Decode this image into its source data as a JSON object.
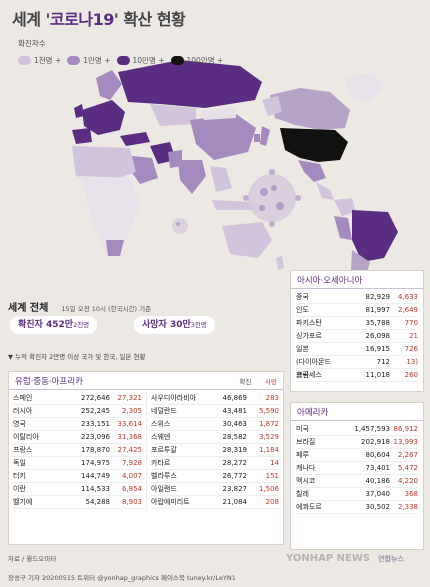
{
  "title": {
    "pre": "세계 '",
    "quote": "코로나19",
    "post": "' 확산 현황"
  },
  "legend": {
    "title": "확진자수",
    "items": [
      {
        "label": "1천명 +",
        "color": "#d1c4dc"
      },
      {
        "label": "1만명 +",
        "color": "#a58ac0"
      },
      {
        "label": "10만명 +",
        "color": "#5a2d82"
      },
      {
        "label": "100만명 +",
        "color": "#111111"
      }
    ]
  },
  "world": {
    "title": "세계 전체",
    "subtitle": "15일 오전 10시 (한국시간) 기준",
    "confirmed_label": "확진자",
    "confirmed_big": "452만",
    "confirmed_small": "2천명",
    "deaths_label": "사망자",
    "deaths_big": "30만",
    "deaths_small": "3천명"
  },
  "note": "▼ 누적 확진자 2만명 이상 국가 및 한국, 일본 현황",
  "europe": {
    "title": "유럽·중동·아프리카",
    "col_confirmed": "확진",
    "col_deaths": "사망",
    "left": [
      {
        "name": "스페인",
        "confirmed": "272,646",
        "deaths": "27,321"
      },
      {
        "name": "러시아",
        "confirmed": "252,245",
        "deaths": "2,305"
      },
      {
        "name": "영국",
        "confirmed": "233,151",
        "deaths": "33,614"
      },
      {
        "name": "이탈리아",
        "confirmed": "223,096",
        "deaths": "31,368"
      },
      {
        "name": "프랑스",
        "confirmed": "178,870",
        "deaths": "27,425"
      },
      {
        "name": "독일",
        "confirmed": "174,975",
        "deaths": "7,928"
      },
      {
        "name": "터키",
        "confirmed": "144,749",
        "deaths": "4,007"
      },
      {
        "name": "이란",
        "confirmed": "114,533",
        "deaths": "6,854"
      },
      {
        "name": "벨기에",
        "confirmed": "54,288",
        "deaths": "8,903"
      }
    ],
    "right": [
      {
        "name": "사우디아라비아",
        "confirmed": "46,869",
        "deaths": "283"
      },
      {
        "name": "네덜란드",
        "confirmed": "43,481",
        "deaths": "5,590"
      },
      {
        "name": "스위스",
        "confirmed": "30,463",
        "deaths": "1,872"
      },
      {
        "name": "스웨덴",
        "confirmed": "28,582",
        "deaths": "3,529"
      },
      {
        "name": "포르투갈",
        "confirmed": "28,319",
        "deaths": "1,184"
      },
      {
        "name": "카타르",
        "confirmed": "28,272",
        "deaths": "14"
      },
      {
        "name": "벨라루스",
        "confirmed": "26,772",
        "deaths": "151"
      },
      {
        "name": "아일랜드",
        "confirmed": "23,827",
        "deaths": "1,506"
      },
      {
        "name": "아랍에미리트",
        "confirmed": "21,084",
        "deaths": "208"
      }
    ]
  },
  "asia": {
    "title": "아시아·오세아니아",
    "rows": [
      {
        "name": "중국",
        "confirmed": "82,929",
        "deaths": "4,633"
      },
      {
        "name": "인도",
        "confirmed": "81,997",
        "deaths": "2,649"
      },
      {
        "name": "파키스탄",
        "confirmed": "35,788",
        "deaths": "770"
      },
      {
        "name": "싱가포르",
        "confirmed": "26,098",
        "deaths": "21"
      },
      {
        "name": "일본",
        "confirmed": "16,915",
        "deaths": "726"
      },
      {
        "name": "(다이아몬드 프린세스",
        "confirmed": "712",
        "deaths": "13)"
      },
      {
        "name": "한국",
        "confirmed": "11,018",
        "deaths": "260"
      }
    ]
  },
  "america": {
    "title": "아메리카",
    "rows": [
      {
        "name": "미국",
        "confirmed": "1,457,593",
        "deaths": "86,912"
      },
      {
        "name": "브라질",
        "confirmed": "202,918",
        "deaths": "13,993"
      },
      {
        "name": "페루",
        "confirmed": "80,604",
        "deaths": "2,267"
      },
      {
        "name": "캐나다",
        "confirmed": "73,401",
        "deaths": "5,472"
      },
      {
        "name": "멕시코",
        "confirmed": "40,186",
        "deaths": "4,220"
      },
      {
        "name": "칠레",
        "confirmed": "37,040",
        "deaths": "368"
      },
      {
        "name": "에콰도르",
        "confirmed": "30,502",
        "deaths": "2,338"
      }
    ]
  },
  "source": "자료 / 월드오미터",
  "credit": "장성구 기자  20200515  트위터 @yonhap_graphics  페이스북 tuney.kr/LeYN1",
  "watermark": "YONHAP NEWS",
  "watermark2": "연합뉴스"
}
